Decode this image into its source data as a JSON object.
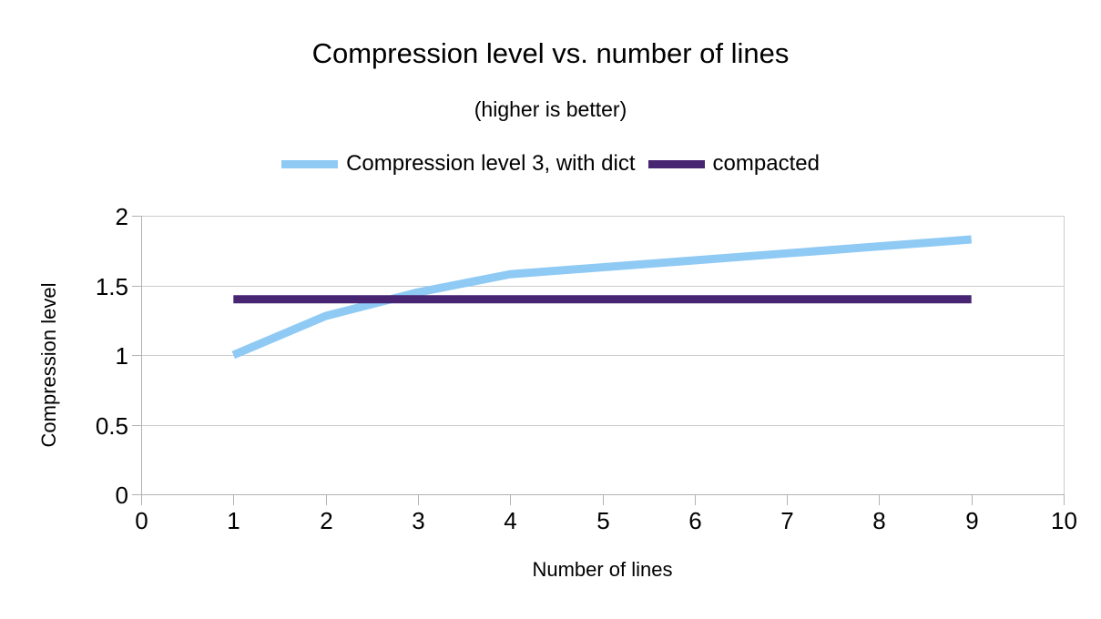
{
  "chart_data": {
    "type": "line",
    "title": "Compression level vs. number of lines",
    "subtitle": "(higher is better)",
    "xlabel": "Number of lines",
    "ylabel": "Compression level",
    "xlim": [
      0,
      10
    ],
    "ylim": [
      0,
      2
    ],
    "xticks": [
      "0",
      "1",
      "2",
      "3",
      "4",
      "5",
      "6",
      "7",
      "8",
      "9",
      "10"
    ],
    "yticks": [
      "0",
      "0.5",
      "1",
      "1.5",
      "2"
    ],
    "grid": "horizontal",
    "legend_position": "top",
    "x": [
      1,
      2,
      3,
      4,
      5,
      6,
      7,
      8,
      9
    ],
    "series": [
      {
        "name": "Compression level 3, with dict",
        "color": "#8ecaf4",
        "values": [
          1.0,
          1.28,
          1.45,
          1.58,
          1.63,
          1.68,
          1.73,
          1.78,
          1.83
        ]
      },
      {
        "name": "compacted",
        "color": "#482573",
        "values": [
          1.4,
          1.4,
          1.4,
          1.4,
          1.4,
          1.4,
          1.4,
          1.4,
          1.4
        ]
      }
    ]
  },
  "colors": {
    "gridline": "#cccccc",
    "axis": "#b3b3b3",
    "text": "#000000"
  }
}
